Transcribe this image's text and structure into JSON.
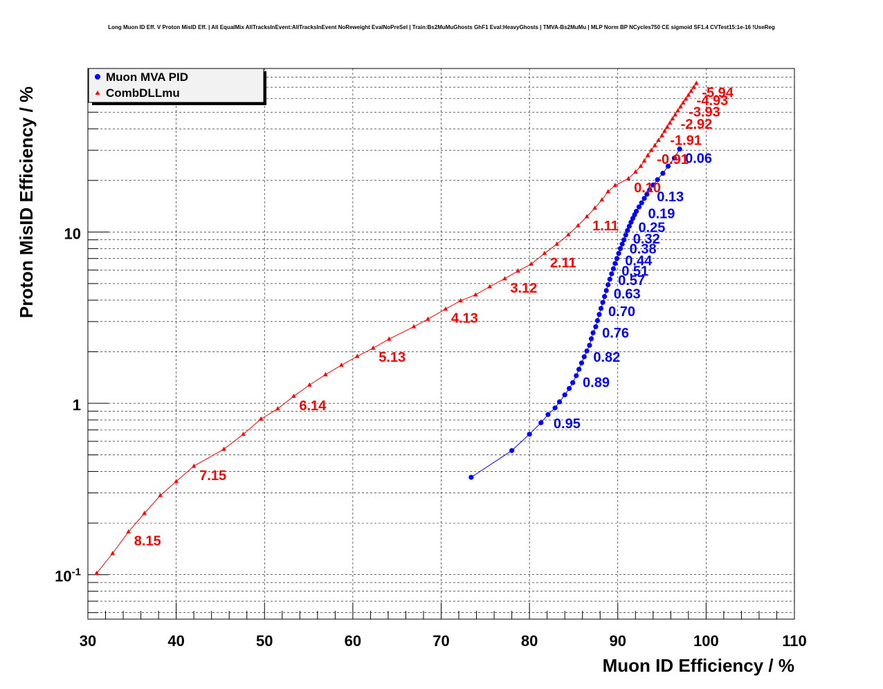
{
  "chart_data": {
    "type": "scatter",
    "title": "Long Muon ID Eff. V Proton MisID Eff. | All EqualMix AllTracksInEvent:AllTracksInEvent NoReweight EvalNoPreSel | Train:Bs2MuMuGhosts GhF1 Eval:HeavyGhosts | TMVA-Bs2MuMu | MLP Norm BP NCycles750 CE sigmoid SF1.4 CVTest15:1e-16 !UseReg",
    "xlabel": "Muon ID Efficiency / %",
    "ylabel": "Proton MisID Efficiency / %",
    "xlim": [
      30,
      110
    ],
    "ylim": [
      0.055,
      90
    ],
    "y_scale": "log",
    "grid": true,
    "legend_position": "top-left",
    "x_ticks": [
      "30",
      "40",
      "50",
      "60",
      "70",
      "80",
      "90",
      "100",
      "110"
    ],
    "y_ticks": [
      {
        "value": 0.1,
        "label": "10",
        "exp": "-1"
      },
      {
        "value": 1,
        "label": "1",
        "exp": ""
      },
      {
        "value": 10,
        "label": "10",
        "exp": ""
      }
    ],
    "series": [
      {
        "name": "Muon MVA PID",
        "color": "#0000ff",
        "marker": "circle",
        "x": [
          73.4,
          78.0,
          80.0,
          81.3,
          82.1,
          82.9,
          83.4,
          84.0,
          84.5,
          84.9,
          85.3,
          85.6,
          85.9,
          86.2,
          86.5,
          86.8,
          87.0,
          87.2,
          87.5,
          87.7,
          87.9,
          88.1,
          88.3,
          88.5,
          88.7,
          88.9,
          89.1,
          89.3,
          89.5,
          89.7,
          89.9,
          90.1,
          90.3,
          90.5,
          90.7,
          90.9,
          91.1,
          91.3,
          91.5,
          91.7,
          91.9,
          92.1,
          92.4,
          92.7,
          93.0,
          93.3,
          93.6,
          94.0,
          94.5,
          95.1,
          95.7,
          96.4,
          97.0
        ],
        "y": [
          0.37,
          0.53,
          0.66,
          0.77,
          0.86,
          0.94,
          1.02,
          1.12,
          1.22,
          1.32,
          1.45,
          1.58,
          1.72,
          1.87,
          2.02,
          2.18,
          2.38,
          2.58,
          2.8,
          3.04,
          3.3,
          3.58,
          3.88,
          4.2,
          4.55,
          4.92,
          5.3,
          5.7,
          6.1,
          6.55,
          7.0,
          7.5,
          8.0,
          8.5,
          9.0,
          9.6,
          10.2,
          10.8,
          11.4,
          12.0,
          12.6,
          13.2,
          14.0,
          14.8,
          15.7,
          16.6,
          17.6,
          18.8,
          20.2,
          22.0,
          24.2,
          27.0,
          30.5
        ],
        "labels": [
          {
            "x": 97.0,
            "y": 30.5,
            "text": "0.06"
          },
          {
            "x": 93.8,
            "y": 18.2,
            "text": "0.13"
          },
          {
            "x": 92.8,
            "y": 14.5,
            "text": "0.19"
          },
          {
            "x": 91.7,
            "y": 12.0,
            "text": "0.25"
          },
          {
            "x": 91.1,
            "y": 10.3,
            "text": "0.32"
          },
          {
            "x": 90.7,
            "y": 9.0,
            "text": "0.38"
          },
          {
            "x": 90.2,
            "y": 7.7,
            "text": "0.44"
          },
          {
            "x": 89.8,
            "y": 6.7,
            "text": "0.51"
          },
          {
            "x": 89.4,
            "y": 5.9,
            "text": "0.57"
          },
          {
            "x": 88.9,
            "y": 4.92,
            "text": "0.63"
          },
          {
            "x": 88.3,
            "y": 3.88,
            "text": "0.70"
          },
          {
            "x": 87.6,
            "y": 2.92,
            "text": "0.76"
          },
          {
            "x": 86.6,
            "y": 2.1,
            "text": "0.82"
          },
          {
            "x": 85.4,
            "y": 1.5,
            "text": "0.89"
          },
          {
            "x": 82.1,
            "y": 0.86,
            "text": "0.95"
          }
        ]
      },
      {
        "name": "CombDLLmu",
        "color": "#ff0000",
        "marker": "triangle",
        "x": [
          31.0,
          32.8,
          34.6,
          36.4,
          38.2,
          40.0,
          42.0,
          45.4,
          47.6,
          49.6,
          51.5,
          53.3,
          55.1,
          56.9,
          58.7,
          60.5,
          62.3,
          64.1,
          66.9,
          68.5,
          70.5,
          72.2,
          73.9,
          75.5,
          77.2,
          78.7,
          80.2,
          81.7,
          83.1,
          84.4,
          85.5,
          86.5,
          87.4,
          88.2,
          88.9,
          89.7,
          91.2,
          92.0,
          92.6,
          93.0,
          93.4,
          93.8,
          94.2,
          94.6,
          95.0,
          95.3,
          95.6,
          95.9,
          96.2,
          96.5,
          96.8,
          97.1,
          97.4,
          97.7,
          98.0,
          98.3,
          98.6,
          98.9
        ],
        "y": [
          0.102,
          0.133,
          0.178,
          0.228,
          0.29,
          0.35,
          0.43,
          0.54,
          0.66,
          0.81,
          0.93,
          1.1,
          1.28,
          1.47,
          1.67,
          1.88,
          2.1,
          2.37,
          2.8,
          3.1,
          3.55,
          3.97,
          4.3,
          4.8,
          5.34,
          5.92,
          6.5,
          7.5,
          8.5,
          9.65,
          10.9,
          12.3,
          13.8,
          15.4,
          17.2,
          18.7,
          20.5,
          22.4,
          24.2,
          26.0,
          28.0,
          30.0,
          32.0,
          34.3,
          36.5,
          38.8,
          41.0,
          43.3,
          45.8,
          48.3,
          51.0,
          53.8,
          56.7,
          59.7,
          62.9,
          66.3,
          69.9,
          73.8
        ],
        "labels": [
          {
            "x": 98.9,
            "y": 73.8,
            "text": "-5.94"
          },
          {
            "x": 98.3,
            "y": 66.3,
            "text": "-4.93"
          },
          {
            "x": 97.4,
            "y": 56.7,
            "text": "-3.93"
          },
          {
            "x": 96.5,
            "y": 48.3,
            "text": "-2.92"
          },
          {
            "x": 95.3,
            "y": 38.8,
            "text": "-1.91"
          },
          {
            "x": 93.8,
            "y": 30.0,
            "text": "-0.91"
          },
          {
            "x": 91.2,
            "y": 20.5,
            "text": "0.10"
          },
          {
            "x": 86.5,
            "y": 12.3,
            "text": "1.11"
          },
          {
            "x": 81.7,
            "y": 7.5,
            "text": "2.11"
          },
          {
            "x": 77.2,
            "y": 5.34,
            "text": "3.12"
          },
          {
            "x": 70.5,
            "y": 3.55,
            "text": "4.13"
          },
          {
            "x": 62.3,
            "y": 2.1,
            "text": "5.13"
          },
          {
            "x": 53.3,
            "y": 1.1,
            "text": "6.14"
          },
          {
            "x": 42.0,
            "y": 0.43,
            "text": "7.15"
          },
          {
            "x": 34.6,
            "y": 0.178,
            "text": "8.15"
          }
        ]
      }
    ]
  }
}
